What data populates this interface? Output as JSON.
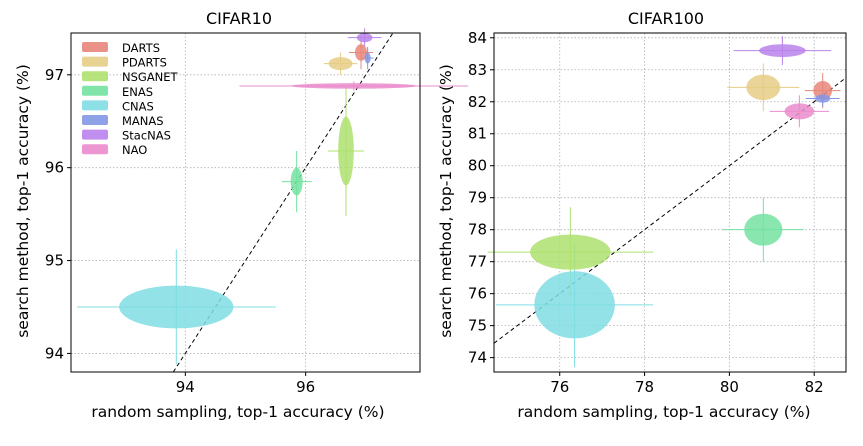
{
  "chart_data": [
    {
      "type": "scatter",
      "title": "CIFAR10",
      "xlabel": "random sampling, top-1 accuracy (%)",
      "ylabel": "search method, top-1 accuracy (%)",
      "xlim": [
        92.1,
        97.9
      ],
      "ylim": [
        93.8,
        97.45
      ],
      "xticks": [
        94,
        96
      ],
      "yticks": [
        94,
        95,
        96,
        97
      ],
      "grid": true,
      "legend": {
        "position": "top-left",
        "entries": [
          "DARTS",
          "PDARTS",
          "NSGANET",
          "ENAS",
          "CNAS",
          "MANAS",
          "StacNAS",
          "NAO"
        ]
      },
      "series": [
        {
          "name": "DARTS",
          "color": "#e8867a",
          "x": 96.92,
          "y": 97.24,
          "x_std": 0.1,
          "y_std": 0.09,
          "err_x": 0.2,
          "err_y": 0.18
        },
        {
          "name": "PDARTS",
          "color": "#e6cd85",
          "x": 96.58,
          "y": 97.12,
          "x_std": 0.2,
          "y_std": 0.07,
          "err_x": 0.28,
          "err_y": 0.12
        },
        {
          "name": "NSGANET",
          "color": "#aee06e",
          "x": 96.67,
          "y": 96.18,
          "x_std": 0.13,
          "y_std": 0.37,
          "err_x": 0.3,
          "err_y": 0.7
        },
        {
          "name": "ENAS",
          "color": "#73e2a0",
          "x": 95.85,
          "y": 95.85,
          "x_std": 0.1,
          "y_std": 0.15,
          "err_x": 0.25,
          "err_y": 0.33
        },
        {
          "name": "CNAS",
          "color": "#7fdde3",
          "x": 93.85,
          "y": 94.5,
          "x_std": 0.95,
          "y_std": 0.23,
          "err_x": 1.65,
          "err_y": 0.62
        },
        {
          "name": "MANAS",
          "color": "#8497e6",
          "x": 97.03,
          "y": 97.18,
          "x_std": 0.05,
          "y_std": 0.06,
          "err_x": 0.1,
          "err_y": 0.12
        },
        {
          "name": "StacNAS",
          "color": "#b882ec",
          "x": 96.98,
          "y": 97.4,
          "x_std": 0.13,
          "y_std": 0.05,
          "err_x": 0.28,
          "err_y": 0.1
        },
        {
          "name": "NAO",
          "color": "#ea8ccd",
          "x": 96.8,
          "y": 96.88,
          "x_std": 1.05,
          "y_std": 0.03,
          "err_x": 1.9,
          "err_y": 0.05
        }
      ]
    },
    {
      "type": "scatter",
      "title": "CIFAR100",
      "xlabel": "random sampling, top-1 accuracy (%)",
      "ylabel": "search method, top-1 accuracy (%)",
      "xlim": [
        74.45,
        82.75
      ],
      "ylim": [
        73.55,
        84.15
      ],
      "xticks": [
        76,
        78,
        80,
        82
      ],
      "yticks": [
        74,
        75,
        76,
        77,
        78,
        79,
        80,
        81,
        82,
        83,
        84
      ],
      "grid": true,
      "series": [
        {
          "name": "DARTS",
          "color": "#e8867a",
          "x": 82.2,
          "y": 82.35,
          "x_std": 0.22,
          "y_std": 0.3,
          "err_x": 0.42,
          "err_y": 0.55
        },
        {
          "name": "PDARTS",
          "color": "#e6cd85",
          "x": 80.8,
          "y": 82.45,
          "x_std": 0.4,
          "y_std": 0.4,
          "err_x": 0.85,
          "err_y": 0.75
        },
        {
          "name": "NSGANET",
          "color": "#aee06e",
          "x": 76.25,
          "y": 77.3,
          "x_std": 0.95,
          "y_std": 0.55,
          "err_x": 1.95,
          "err_y": 1.4
        },
        {
          "name": "ENAS",
          "color": "#73e2a0",
          "x": 80.8,
          "y": 78.0,
          "x_std": 0.45,
          "y_std": 0.5,
          "err_x": 0.95,
          "err_y": 1.0
        },
        {
          "name": "CNAS",
          "color": "#7fdde3",
          "x": 76.35,
          "y": 75.65,
          "x_std": 0.95,
          "y_std": 1.05,
          "err_x": 1.85,
          "err_y": 1.95
        },
        {
          "name": "MANAS",
          "color": "#8497e6",
          "x": 82.2,
          "y": 82.1,
          "x_std": 0.18,
          "y_std": 0.13,
          "err_x": 0.4,
          "err_y": 0.25
        },
        {
          "name": "StacNAS",
          "color": "#b882ec",
          "x": 81.25,
          "y": 83.6,
          "x_std": 0.55,
          "y_std": 0.2,
          "err_x": 1.15,
          "err_y": 0.45
        },
        {
          "name": "NAO",
          "color": "#ea8ccd",
          "x": 81.65,
          "y": 81.7,
          "x_std": 0.35,
          "y_std": 0.25,
          "err_x": 0.7,
          "err_y": 0.5
        }
      ]
    }
  ]
}
